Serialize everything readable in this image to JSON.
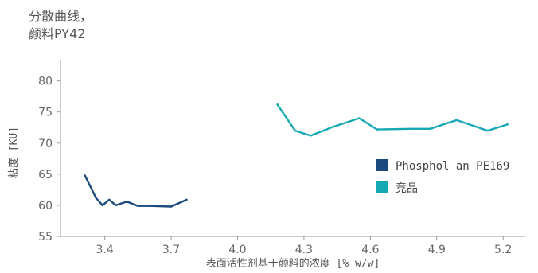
{
  "chart_data": {
    "type": "line",
    "title_line1": "分散曲线，",
    "title_line2": "颜料PY42",
    "xlabel": "表面活性剂基于颜料的浓度 [% w/w]",
    "ylabel": "粘度 [KU]",
    "xlim": [
      3.2,
      5.3
    ],
    "ylim": [
      55,
      82
    ],
    "xticks": [
      "3.4",
      "3.7",
      "4.0",
      "4.3",
      "4.6",
      "4.9",
      "5.2"
    ],
    "yticks": [
      "55",
      "60",
      "65",
      "70",
      "75",
      "80"
    ],
    "grid": false,
    "legend_position": "right",
    "colors": {
      "series1": "#1d4a7e",
      "series2": "#17a9b3"
    },
    "series": [
      {
        "name": "Phosphol an PE169",
        "color": "#1d4a7e",
        "x": [
          3.31,
          3.36,
          3.39,
          3.42,
          3.45,
          3.5,
          3.55,
          3.6,
          3.7,
          3.77
        ],
        "y": [
          64.8,
          61.2,
          60.0,
          60.9,
          60.0,
          60.6,
          59.9,
          59.9,
          59.8,
          60.9
        ]
      },
      {
        "name": "竞品",
        "color": "#17a9b3",
        "x": [
          4.18,
          4.26,
          4.33,
          4.43,
          4.55,
          4.63,
          4.79,
          4.87,
          4.99,
          5.13,
          5.22
        ],
        "y": [
          76.2,
          72.0,
          71.2,
          72.6,
          74.0,
          72.2,
          72.3,
          72.3,
          73.7,
          72.0,
          73.0
        ]
      }
    ]
  }
}
